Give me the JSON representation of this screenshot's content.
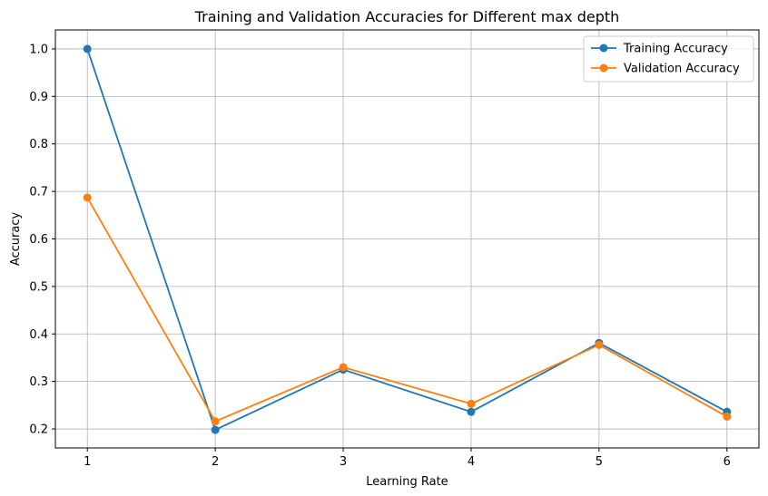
{
  "chart_data": {
    "type": "line",
    "title": "Training and Validation Accuracies for Different max depth",
    "xlabel": "Learning Rate",
    "ylabel": "Accuracy",
    "x": [
      1,
      2,
      3,
      4,
      5,
      6
    ],
    "xticks": [
      "1",
      "2",
      "3",
      "4",
      "5",
      "6"
    ],
    "yticks": [
      "0.2",
      "0.3",
      "0.4",
      "0.5",
      "0.6",
      "0.7",
      "0.8",
      "0.9",
      "1.0"
    ],
    "xlim": [
      0.75,
      6.25
    ],
    "ylim": [
      0.16,
      1.04
    ],
    "grid": true,
    "legend_position": "top-right",
    "series": [
      {
        "name": "Training Accuracy",
        "color": "#1f77b4",
        "values": [
          1.0,
          0.198,
          0.325,
          0.236,
          0.381,
          0.236
        ]
      },
      {
        "name": "Validation Accuracy",
        "color": "#ff7f0e",
        "values": [
          0.687,
          0.216,
          0.33,
          0.253,
          0.377,
          0.226
        ]
      }
    ]
  }
}
